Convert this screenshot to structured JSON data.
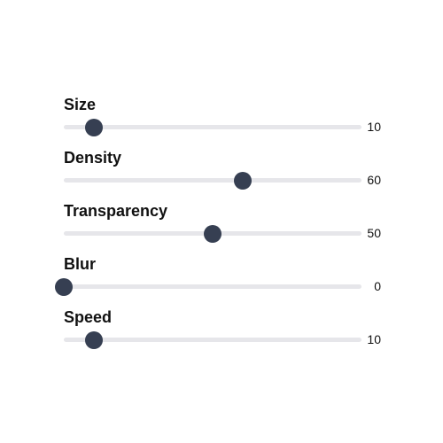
{
  "sliders": [
    {
      "id": "size",
      "label": "Size",
      "value": 10,
      "display": "10"
    },
    {
      "id": "density",
      "label": "Density",
      "value": 60,
      "display": "60"
    },
    {
      "id": "transparency",
      "label": "Transparency",
      "value": 50,
      "display": "50"
    },
    {
      "id": "blur",
      "label": "Blur",
      "value": 0,
      "display": "0"
    },
    {
      "id": "speed",
      "label": "Speed",
      "value": 10,
      "display": "10"
    }
  ],
  "range": {
    "min": 0,
    "max": 100
  },
  "colors": {
    "thumb": "#363f52",
    "track": "#e6e6ea"
  }
}
